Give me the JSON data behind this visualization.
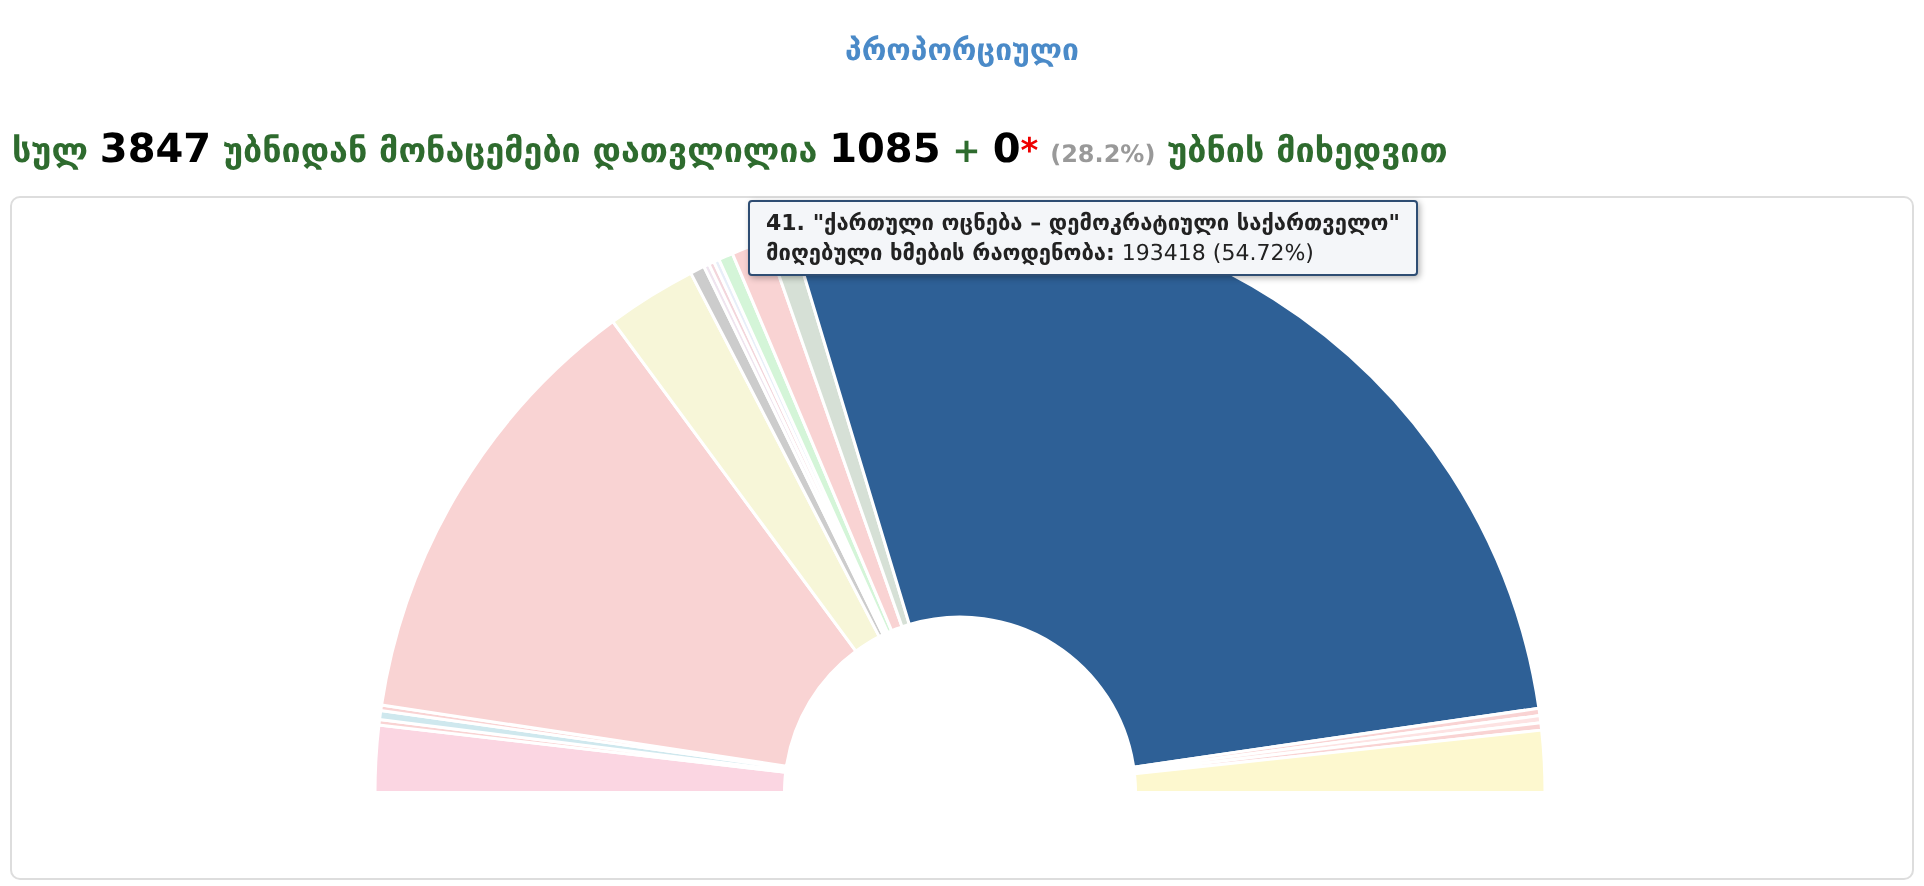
{
  "chart_data": {
    "type": "donut",
    "title": "პროპორციული",
    "subtitle": "სულ 3847 უბნიდან მონაცემები დათვლილია 1085 + 0* (28.2%) უბნის მიხედვით",
    "categories": [
      null,
      null,
      null,
      null,
      null,
      null,
      null,
      null,
      null,
      null,
      null,
      null,
      null,
      "41. \"ქართული ოცნება – დემოკრატიული საქართველო\"",
      null,
      null,
      null,
      null
    ],
    "values": [
      3.68,
      0.3,
      0.5,
      0.3,
      25,
      5,
      0.8,
      0.3,
      0.3,
      0.3,
      0.8,
      2,
      1.4,
      54.72,
      0.4,
      0.4,
      0.4,
      3.4
    ],
    "colors": [
      "#fbd6e2",
      "#f9d3d3",
      "#cfe8ee",
      "#f9d3d3",
      "#f9d3d3",
      "#f7f6d8",
      "#cccccc",
      "#efe4ef",
      "#f3d6dc",
      "#e8eef8",
      "#d4f5d8",
      "#f9d3d3",
      "#d6e0d6",
      "#2e6096",
      "#f9d3d3",
      "#fde3e3",
      "#f9d3d3",
      "#fdf8cf"
    ],
    "annotations": [
      "მიღებული ხმების რაოდენობა: 193418 (54.72%)"
    ],
    "legend": false
  }
}
